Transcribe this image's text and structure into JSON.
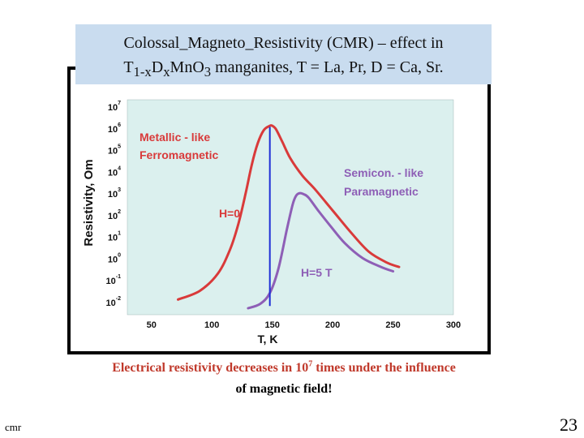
{
  "slide": {
    "title_line1": "Colossal_Magneto_Resistivity (CMR) – effect in",
    "title_line2": {
      "p1": "T",
      "s1": "1-x",
      "p2": "D",
      "s2": "x",
      "p3": "MnO",
      "s3": "3",
      "p4": " manganites, T = La, Pr,  D = Ca, Sr."
    },
    "caption_part1": "Electrical resistivity decreases in 10",
    "caption_sup": "7",
    "caption_part2": " times under the influence",
    "caption_line2": "of magnetic field!",
    "footer_left": "cmr",
    "page_number": "23"
  },
  "colors": {
    "plot_background": "#dbf0ee",
    "h0_curve": "#d93a3a",
    "h5_curve": "#8e5fb6",
    "vertical_line": "#1f2fd6",
    "annotation_red": "#d93a3a",
    "annotation_purple": "#8e5fb6"
  },
  "chart_data": {
    "type": "line",
    "xlabel": "T, K",
    "ylabel": "Resistivity, Om",
    "xlim": [
      30,
      300
    ],
    "x_ticks": [
      "50",
      "100",
      "150",
      "200",
      "250",
      "300"
    ],
    "y_ticks": [
      {
        "base": "10",
        "exp": "7"
      },
      {
        "base": "10",
        "exp": "6"
      },
      {
        "base": "10",
        "exp": "5"
      },
      {
        "base": "10",
        "exp": "4"
      },
      {
        "base": "10",
        "exp": "3"
      },
      {
        "base": "10",
        "exp": "2"
      },
      {
        "base": "10",
        "exp": "1"
      },
      {
        "base": "10",
        "exp": "0"
      },
      {
        "base": "10",
        "exp": "-1"
      },
      {
        "base": "10",
        "exp": "-2"
      }
    ],
    "y_log_exponent_range": [
      -2.6,
      7.3
    ],
    "series": [
      {
        "name": "H=0",
        "x": [
          72,
          90,
          105,
          115,
          122,
          128,
          133,
          138,
          143,
          148,
          150,
          153,
          158,
          165,
          175,
          185,
          200,
          215,
          230,
          245,
          255
        ],
        "log10_y": [
          -1.9,
          -1.5,
          -0.7,
          0.4,
          1.6,
          3.0,
          4.3,
          5.3,
          5.9,
          6.1,
          6.1,
          5.95,
          5.4,
          4.6,
          3.8,
          3.2,
          2.2,
          1.2,
          0.3,
          -0.2,
          -0.4
        ]
      },
      {
        "name": "H=5 T",
        "x": [
          130,
          140,
          148,
          155,
          162,
          167,
          170,
          173,
          176,
          180,
          188,
          198,
          210,
          225,
          240,
          250
        ],
        "log10_y": [
          -2.3,
          -2.1,
          -1.6,
          -0.5,
          1.3,
          2.5,
          2.9,
          3.0,
          2.95,
          2.8,
          2.2,
          1.5,
          0.7,
          0.0,
          -0.4,
          -0.6
        ]
      }
    ],
    "vertical_marker_x": 148,
    "annotations": {
      "metallic_line1": "Metallic - like",
      "metallic_line2": "Ferromagnetic",
      "semicon_line1": "Semicon. - like",
      "semicon_line2": "Paramagnetic",
      "h0": "H=0",
      "h5": "H=5 T"
    }
  }
}
